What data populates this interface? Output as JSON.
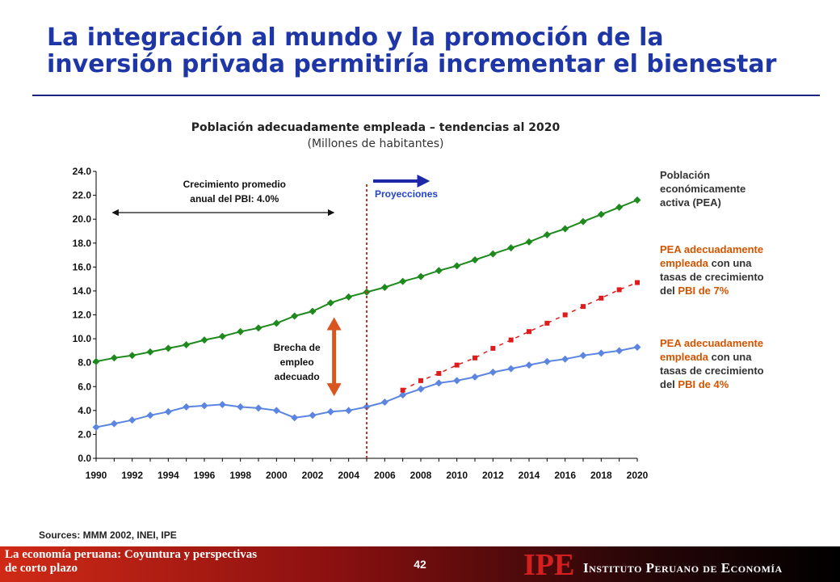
{
  "title_line1": "La integración al mundo y la promoción de la",
  "title_line2": "inversión privada permitiría incrementar el bienestar",
  "chart_data": {
    "type": "line",
    "title": "Población adecuadamente empleada – tendencias al 2020",
    "subtitle": "(Millones de habitantes)",
    "xlabel": "",
    "ylabel": "",
    "ylim": [
      0,
      24
    ],
    "xlim": [
      1990,
      2020
    ],
    "x_ticks": [
      1990,
      1992,
      1994,
      1996,
      1998,
      2000,
      2002,
      2004,
      2006,
      2008,
      2010,
      2012,
      2014,
      2016,
      2018,
      2020
    ],
    "y_ticks": [
      0,
      2,
      4,
      6,
      8,
      10,
      12,
      14,
      16,
      18,
      20,
      22,
      24
    ],
    "y_tick_labels": [
      "0.0",
      "2.0",
      "4.0",
      "6.0",
      "8.0",
      "10.0",
      "12.0",
      "14.0",
      "16.0",
      "18.0",
      "20.0",
      "22.0",
      "24.0"
    ],
    "series": [
      {
        "name": "Población económicamente activa (PEA)",
        "color": "#1e8a1e",
        "marker": "diamond",
        "x": [
          1990,
          1991,
          1992,
          1993,
          1994,
          1995,
          1996,
          1997,
          1998,
          1999,
          2000,
          2001,
          2002,
          2003,
          2004,
          2005,
          2006,
          2007,
          2008,
          2009,
          2010,
          2011,
          2012,
          2013,
          2014,
          2015,
          2016,
          2017,
          2018,
          2019,
          2020
        ],
        "values": [
          8.1,
          8.4,
          8.6,
          8.9,
          9.2,
          9.5,
          9.9,
          10.2,
          10.6,
          10.9,
          11.3,
          11.9,
          12.3,
          13.0,
          13.5,
          13.9,
          14.3,
          14.8,
          15.2,
          15.7,
          16.1,
          16.6,
          17.1,
          17.6,
          18.1,
          18.7,
          19.2,
          19.8,
          20.4,
          21.0,
          21.6
        ]
      },
      {
        "name": "PEA adecuadamente empleada con una tasas de crecimiento del PBI de 4%",
        "color": "#5b85e0",
        "marker": "diamond",
        "x": [
          1990,
          1991,
          1992,
          1993,
          1994,
          1995,
          1996,
          1997,
          1998,
          1999,
          2000,
          2001,
          2002,
          2003,
          2004,
          2005,
          2006,
          2007,
          2008,
          2009,
          2010,
          2011,
          2012,
          2013,
          2014,
          2015,
          2016,
          2017,
          2018,
          2019,
          2020
        ],
        "values": [
          2.6,
          2.9,
          3.2,
          3.6,
          3.9,
          4.3,
          4.4,
          4.5,
          4.3,
          4.2,
          4.0,
          3.4,
          3.6,
          3.9,
          4.0,
          4.3,
          4.7,
          5.3,
          5.8,
          6.3,
          6.5,
          6.8,
          7.2,
          7.5,
          7.8,
          8.1,
          8.3,
          8.6,
          8.8,
          9.0,
          9.3
        ]
      },
      {
        "name": "PEA adecuadamente empleada con una tasas de crecimiento del PBI de 7%",
        "color": "#e01b1b",
        "marker": "square",
        "dashed": true,
        "x": [
          2007,
          2008,
          2009,
          2010,
          2011,
          2012,
          2013,
          2014,
          2015,
          2016,
          2017,
          2018,
          2019,
          2020
        ],
        "values": [
          5.7,
          6.5,
          7.1,
          7.8,
          8.4,
          9.2,
          9.9,
          10.6,
          11.3,
          12.0,
          12.7,
          13.4,
          14.1,
          14.7
        ]
      }
    ],
    "annotations": {
      "growth_line1": "Crecimiento promedio",
      "growth_line2": "anual del PBI: 4.0%",
      "growth_span": [
        1991,
        2003
      ],
      "projection_label": "Proyecciones",
      "projection_start_year": 2005,
      "gap_line1": "Brecha de",
      "gap_line2": "empleo",
      "gap_line3": "adecuado",
      "gap_year": 2004,
      "gap_range": [
        5.2,
        11.8
      ]
    }
  },
  "legend": {
    "pea_line1": "Población",
    "pea_line2": "económicamente",
    "pea_line3": "activa (PEA)",
    "l7_prefix": "PEA adecuadamente",
    "l7_highlight1": "empleada",
    "l7_mid": " con una",
    "l7_line3": "tasas de crecimiento",
    "l7_del": "del ",
    "l7_highlight2": "PBI de 7%",
    "l4_prefix": "PEA adecuadamente",
    "l4_highlight1": "empleada",
    "l4_mid": " con una",
    "l4_line3": "tasas de crecimiento",
    "l4_del": "del ",
    "l4_highlight2": "PBI de 4%"
  },
  "sources": "Sources: MMM 2002, INEI, IPE",
  "footer": {
    "left_line1": "La economía peruana: Coyuntura y perspectivas",
    "left_line2": "de corto plazo",
    "page_number": "42",
    "logo": "IPE",
    "institute": "Instituto Peruano de Economía"
  },
  "colors": {
    "title": "#1f36a6",
    "green": "#1e8a1e",
    "blue": "#5b85e0",
    "red": "#e01b1b",
    "gap_arrow": "#d9541e",
    "projection_arrow": "#1c28a8",
    "projection_text": "#2244cc"
  }
}
